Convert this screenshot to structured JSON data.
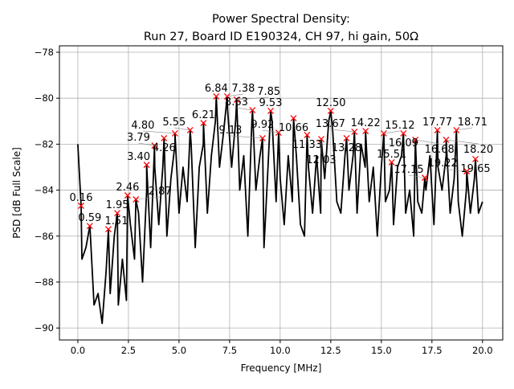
{
  "chart_data": {
    "type": "line",
    "title_line1": "Power Spectral Density:",
    "title_line2": "Run 27, Board ID E190324, CH 97, hi gain, 50Ω",
    "xlabel": "Frequency [MHz]",
    "ylabel": "PSD [dB Full Scale]",
    "xlim": [
      -0.91,
      21.0
    ],
    "ylim": [
      -90.52,
      -77.72
    ],
    "grid": true,
    "xticks": [
      0.0,
      2.5,
      5.0,
      7.5,
      10.0,
      12.5,
      15.0,
      17.5,
      20.0
    ],
    "xtick_labels": [
      "0.0",
      "2.5",
      "5.0",
      "7.5",
      "10.0",
      "12.5",
      "15.0",
      "17.5",
      "20.0"
    ],
    "yticks": [
      -90,
      -88,
      -86,
      -84,
      -82,
      -80,
      -78
    ],
    "ytick_labels": [
      "−90",
      "−88",
      "−86",
      "−84",
      "−82",
      "−80",
      "−78"
    ],
    "series_color": "#000000",
    "marker_color": "#ff0000",
    "trace": {
      "x": [
        0.0,
        0.2,
        0.4,
        0.6,
        0.8,
        1.0,
        1.2,
        1.4,
        1.6,
        1.8,
        2.0,
        2.2,
        2.4,
        2.6,
        2.8,
        3.0,
        3.2,
        3.4,
        3.6,
        3.8,
        4.0,
        4.2,
        4.4,
        4.6,
        4.8,
        5.0,
        5.2,
        5.4,
        5.6,
        5.8,
        6.0,
        6.2,
        6.4,
        6.6,
        6.8,
        7.0,
        7.2,
        7.4,
        7.6,
        7.8,
        8.0,
        8.2,
        8.4,
        8.6,
        8.8,
        9.0,
        9.2,
        9.4,
        9.6,
        9.8,
        10.0,
        10.2,
        10.4,
        10.6,
        10.8,
        11.0,
        11.2,
        11.4,
        11.6,
        11.8,
        12.0,
        12.2,
        12.4,
        12.6,
        12.8,
        13.0,
        13.2,
        13.4,
        13.6,
        13.8,
        14.0,
        14.2,
        14.4,
        14.6,
        14.8,
        15.0,
        15.2,
        15.4,
        15.6,
        15.8,
        16.0,
        16.2,
        16.4,
        16.6,
        16.8,
        17.0,
        17.2,
        17.4,
        17.6,
        17.8,
        18.0,
        18.2,
        18.4,
        18.6,
        18.8,
        19.0,
        19.2,
        19.4,
        19.6,
        19.8,
        20.0
      ],
      "y": [
        -82.0,
        -87.0,
        -86.5,
        -85.6,
        -89.0,
        -88.5,
        -89.8,
        -87.5,
        -88.5,
        -86.0,
        -89.0,
        -87.0,
        -88.8,
        -85.5,
        -87.0,
        -85.0,
        -88.0,
        -84.0,
        -86.5,
        -83.0,
        -85.5,
        -83.0,
        -86.0,
        -83.5,
        -82.0,
        -85.0,
        -83.0,
        -84.5,
        -82.0,
        -86.5,
        -83.0,
        -82.0,
        -85.0,
        -82.5,
        -81.0,
        -83.0,
        -81.5,
        -80.5,
        -83.0,
        -81.0,
        -84.0,
        -82.5,
        -86.0,
        -81.0,
        -84.0,
        -82.5,
        -86.5,
        -83.0,
        -81.0,
        -84.5,
        -83.5,
        -85.5,
        -82.5,
        -84.5,
        -82.5,
        -85.5,
        -86.0,
        -83.0,
        -85.0,
        -82.5,
        -85.0,
        -83.5,
        -81.0,
        -81.5,
        -84.5,
        -85.0,
        -82.5,
        -84.0,
        -82.5,
        -85.0,
        -82.0,
        -83.0,
        -84.5,
        -83.0,
        -86.0,
        -83.0,
        -84.5,
        -84.0,
        -85.5,
        -83.0,
        -82.5,
        -85.0,
        -84.0,
        -86.0,
        -84.5,
        -85.0,
        -84.0,
        -82.5,
        -85.5,
        -83.0,
        -84.0,
        -82.5,
        -85.0,
        -83.5,
        -84.5,
        -86.0,
        -84.0,
        -85.0,
        -83.5,
        -85.0,
        -84.5
      ]
    },
    "peaks": [
      {
        "x": 0.16,
        "y": -84.68,
        "label": "0.16"
      },
      {
        "x": 0.59,
        "y": -85.56,
        "label": "0.59"
      },
      {
        "x": 1.51,
        "y": -85.7,
        "label": "1.51"
      },
      {
        "x": 1.95,
        "y": -85.0,
        "label": "1.95"
      },
      {
        "x": 2.46,
        "y": -84.23,
        "label": "2.46"
      },
      {
        "x": 2.87,
        "y": -84.4,
        "label": "2.87"
      },
      {
        "x": 3.4,
        "y": -82.9,
        "label": "3.40"
      },
      {
        "x": 3.79,
        "y": -82.06,
        "label": "3.79"
      },
      {
        "x": 4.26,
        "y": -81.74,
        "label": "4.26"
      },
      {
        "x": 4.8,
        "y": -81.53,
        "label": "4.80"
      },
      {
        "x": 5.55,
        "y": -81.39,
        "label": "5.55"
      },
      {
        "x": 6.21,
        "y": -81.08,
        "label": "6.21"
      },
      {
        "x": 6.84,
        "y": -79.92,
        "label": "6.84"
      },
      {
        "x": 7.38,
        "y": -79.92,
        "label": "7.38"
      },
      {
        "x": 7.85,
        "y": -80.06,
        "label": "7.85"
      },
      {
        "x": 8.63,
        "y": -80.52,
        "label": "8.63"
      },
      {
        "x": 9.13,
        "y": -81.74,
        "label": "9.13"
      },
      {
        "x": 9.53,
        "y": -80.55,
        "label": "9.53"
      },
      {
        "x": 9.92,
        "y": -81.5,
        "label": "9.92"
      },
      {
        "x": 10.66,
        "y": -80.87,
        "label": "10.66"
      },
      {
        "x": 11.33,
        "y": -81.6,
        "label": "11.33"
      },
      {
        "x": 12.03,
        "y": -81.78,
        "label": "12.03"
      },
      {
        "x": 12.5,
        "y": -80.55,
        "label": "12.50"
      },
      {
        "x": 13.28,
        "y": -81.74,
        "label": "13.28"
      },
      {
        "x": 13.67,
        "y": -81.46,
        "label": "13.67"
      },
      {
        "x": 14.22,
        "y": -81.43,
        "label": "14.22"
      },
      {
        "x": 15.12,
        "y": -81.53,
        "label": "15.12"
      },
      {
        "x": 15.51,
        "y": -82.79,
        "label": "15.51"
      },
      {
        "x": 16.09,
        "y": -81.53,
        "label": "16.09"
      },
      {
        "x": 16.68,
        "y": -81.81,
        "label": "16.68"
      },
      {
        "x": 17.15,
        "y": -83.46,
        "label": "17.15"
      },
      {
        "x": 17.77,
        "y": -81.39,
        "label": "17.77"
      },
      {
        "x": 18.2,
        "y": -81.81,
        "label": "18.20"
      },
      {
        "x": 18.71,
        "y": -81.39,
        "label": "18.71"
      },
      {
        "x": 19.22,
        "y": -83.18,
        "label": "19.22"
      },
      {
        "x": 19.65,
        "y": -82.65,
        "label": "19.65"
      }
    ]
  }
}
